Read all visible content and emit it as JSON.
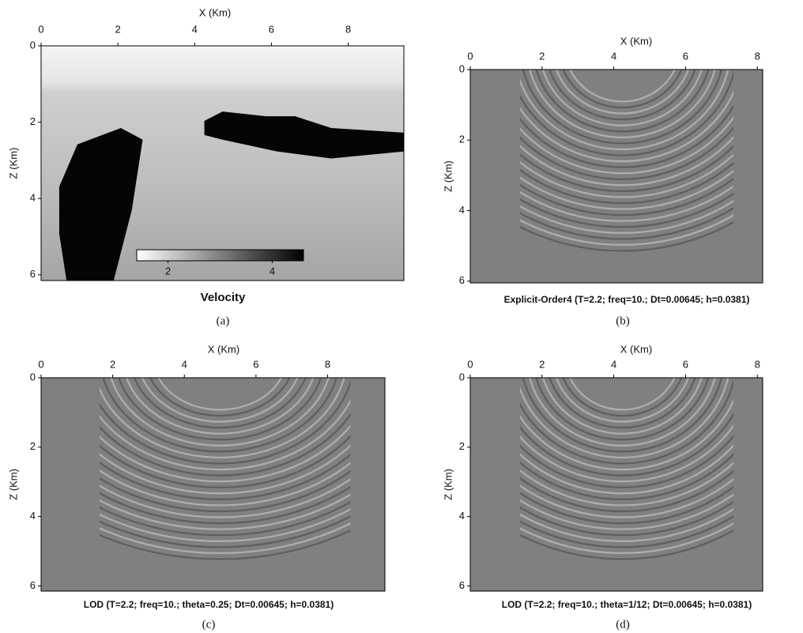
{
  "panels": [
    {
      "x_label": "X (Km)",
      "y_label": "Z (Km)",
      "xlim": [
        0,
        9.45
      ],
      "ylim": [
        0,
        6.15
      ],
      "xticks": [
        0,
        2,
        4,
        6,
        8
      ],
      "yticks": [
        0,
        2,
        4,
        6
      ],
      "title": "Velocity",
      "colorbar": {
        "lim": [
          1.4,
          4.6
        ],
        "ticks": [
          2,
          4
        ]
      },
      "caption": "(a)"
    },
    {
      "x_label": "X (Km)",
      "y_label": "Z (Km)",
      "xlim": [
        0,
        8.15
      ],
      "ylim": [
        0,
        6.05
      ],
      "xticks": [
        0,
        2,
        4,
        6,
        8
      ],
      "yticks": [
        0,
        2,
        4,
        6
      ],
      "title": "Explicit-Order4 (T=2.2; freq=10.; Dt=0.00645; h=0.0381)",
      "caption": "(b)"
    },
    {
      "x_label": "X (Km)",
      "y_label": "Z (Km)",
      "xlim": [
        0,
        9.6
      ],
      "ylim": [
        0,
        6.15
      ],
      "xticks": [
        0,
        2,
        4,
        6,
        8
      ],
      "yticks": [
        0,
        2,
        4,
        6
      ],
      "title": "LOD (T=2.2; freq=10.; theta=0.25; Dt=0.00645; h=0.0381)",
      "caption": "(c)"
    },
    {
      "x_label": "X (Km)",
      "y_label": "Z (Km)",
      "xlim": [
        0,
        8.15
      ],
      "ylim": [
        0,
        6.15
      ],
      "xticks": [
        0,
        2,
        4,
        6,
        8
      ],
      "yticks": [
        0,
        2,
        4,
        6
      ],
      "title": "LOD (T=2.2; freq=10.; theta=1/12; Dt=0.00645; h=0.0381)",
      "caption": "(d)"
    }
  ]
}
